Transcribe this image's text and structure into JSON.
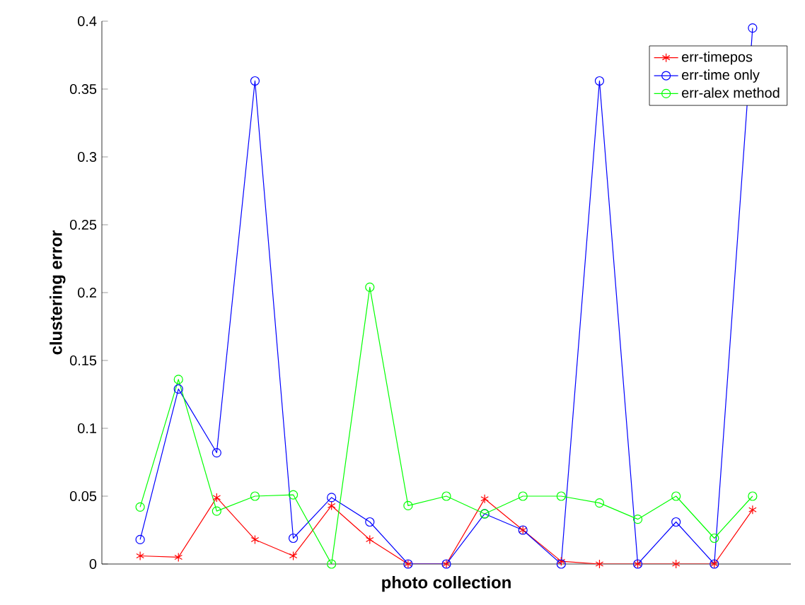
{
  "chart_data": {
    "type": "line",
    "xlabel": "photo collection",
    "ylabel": "clustering error",
    "categories": [
      null,
      null,
      null,
      null,
      null,
      null,
      null,
      null,
      null,
      null,
      null,
      null,
      null,
      null,
      null,
      null,
      null
    ],
    "ylim": [
      0,
      0.4
    ],
    "yticks": [
      {
        "value": 0,
        "label": "0"
      },
      {
        "value": 0.05,
        "label": "0.05"
      },
      {
        "value": 0.1,
        "label": "0.1"
      },
      {
        "value": 0.15,
        "label": "0.15"
      },
      {
        "value": 0.2,
        "label": "0.2"
      },
      {
        "value": 0.25,
        "label": "0.25"
      },
      {
        "value": 0.3,
        "label": "0.3"
      },
      {
        "value": 0.35,
        "label": "0.35"
      },
      {
        "value": 0.4,
        "label": "0.4"
      }
    ],
    "tick_labels": "y",
    "grid": false,
    "legend": "top right",
    "line_style": "solid",
    "series": [
      {
        "name": "err-timepos",
        "color": "#ff0000",
        "marker": "cross",
        "values": [
          0.006,
          0.005,
          0.049,
          0.018,
          0.006,
          0.043,
          0.018,
          0,
          0,
          0.048,
          0.025,
          0.002,
          0,
          0,
          0,
          0,
          0.04
        ]
      },
      {
        "name": "err-time only",
        "color": "#0000ff",
        "marker": "circle",
        "values": [
          0.018,
          0.129,
          0.082,
          0.356,
          0.019,
          0.049,
          0.031,
          0,
          0,
          0.037,
          0.025,
          0,
          0.356,
          0,
          0.031,
          0,
          0.395
        ]
      },
      {
        "name": "err-alex method",
        "color": "#00ff00",
        "marker": "circle",
        "values": [
          0.042,
          0.136,
          0.039,
          0.05,
          0.051,
          0,
          0.204,
          0.043,
          0.05,
          0.037,
          0.05,
          0.05,
          0.045,
          0.033,
          0.05,
          0.019,
          0.05
        ]
      }
    ]
  }
}
